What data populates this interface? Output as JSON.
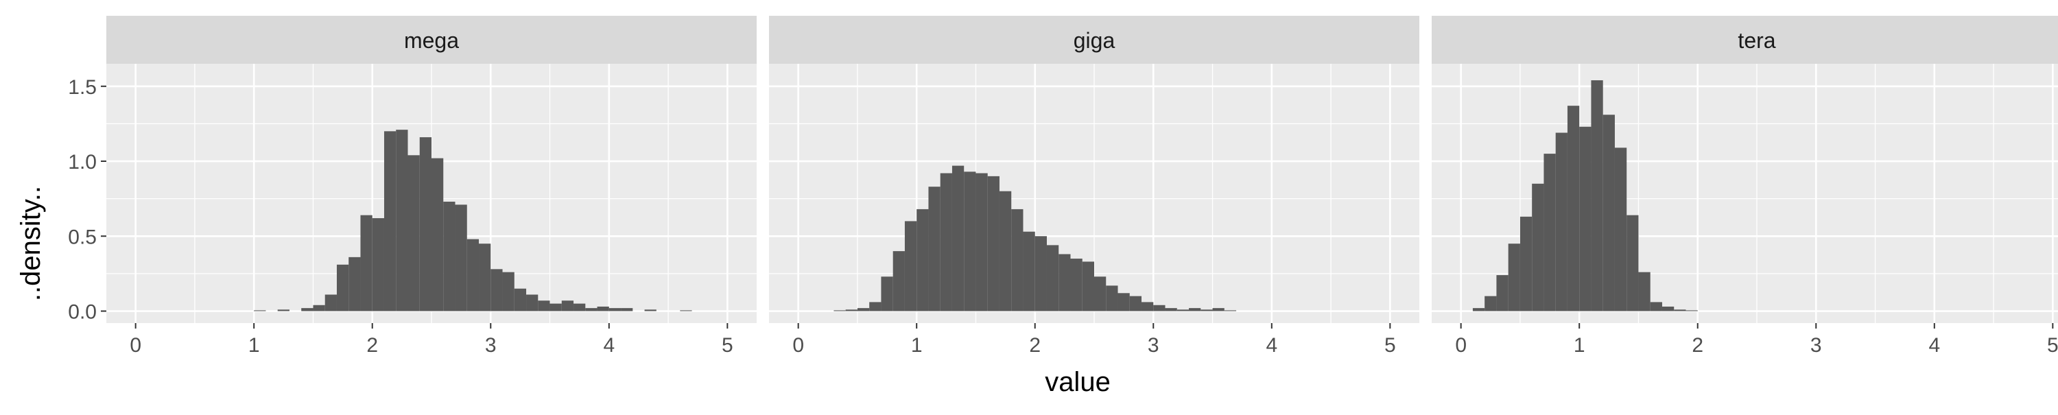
{
  "chart_data": {
    "type": "bar",
    "subtype": "faceted-histogram",
    "xlabel": "value",
    "ylabel": "..density..",
    "xlim": [
      0,
      5
    ],
    "ylim": [
      0,
      1.55
    ],
    "x_ticks": [
      "0",
      "1",
      "2",
      "3",
      "4",
      "5"
    ],
    "y_ticks": [
      "0.0",
      "0.5",
      "1.0",
      "1.5"
    ],
    "bin_width": 0.1,
    "grid": true,
    "colors": {
      "bar": "#595959",
      "panel": "#ebebeb",
      "strip": "#d9d9d9",
      "grid": "#ffffff"
    },
    "facets": [
      {
        "label": "mega",
        "bin_centers": [
          1.05,
          1.15,
          1.25,
          1.35,
          1.45,
          1.55,
          1.65,
          1.75,
          1.85,
          1.95,
          2.05,
          2.15,
          2.25,
          2.35,
          2.45,
          2.55,
          2.65,
          2.75,
          2.85,
          2.95,
          3.05,
          3.15,
          3.25,
          3.35,
          3.45,
          3.55,
          3.65,
          3.75,
          3.85,
          3.95,
          4.05,
          4.15,
          4.25,
          4.35,
          4.45,
          4.55,
          4.65,
          4.75
        ],
        "values": [
          0.005,
          0.0,
          0.01,
          0.0,
          0.02,
          0.04,
          0.11,
          0.31,
          0.36,
          0.64,
          0.62,
          1.2,
          1.21,
          1.04,
          1.16,
          1.02,
          0.73,
          0.71,
          0.48,
          0.45,
          0.28,
          0.26,
          0.15,
          0.11,
          0.07,
          0.05,
          0.07,
          0.05,
          0.02,
          0.03,
          0.02,
          0.02,
          0.0,
          0.01,
          0.0,
          0.0,
          0.005,
          0.0
        ]
      },
      {
        "label": "giga",
        "bin_centers": [
          0.05,
          0.15,
          0.25,
          0.35,
          0.45,
          0.55,
          0.65,
          0.75,
          0.85,
          0.95,
          1.05,
          1.15,
          1.25,
          1.35,
          1.45,
          1.55,
          1.65,
          1.75,
          1.85,
          1.95,
          2.05,
          2.15,
          2.25,
          2.35,
          2.45,
          2.55,
          2.65,
          2.75,
          2.85,
          2.95,
          3.05,
          3.15,
          3.25,
          3.35,
          3.45,
          3.55,
          3.65
        ],
        "values": [
          0.0,
          0.0,
          0.0,
          0.005,
          0.01,
          0.02,
          0.06,
          0.23,
          0.4,
          0.6,
          0.68,
          0.83,
          0.92,
          0.97,
          0.93,
          0.92,
          0.9,
          0.8,
          0.68,
          0.53,
          0.5,
          0.44,
          0.38,
          0.35,
          0.33,
          0.23,
          0.17,
          0.12,
          0.1,
          0.06,
          0.04,
          0.02,
          0.01,
          0.02,
          0.01,
          0.02,
          0.005
        ]
      },
      {
        "label": "tera",
        "bin_centers": [
          0.05,
          0.15,
          0.25,
          0.35,
          0.45,
          0.55,
          0.65,
          0.75,
          0.85,
          0.95,
          1.05,
          1.15,
          1.25,
          1.35,
          1.45,
          1.55,
          1.65,
          1.75,
          1.85,
          1.95
        ],
        "values": [
          0.0,
          0.02,
          0.1,
          0.24,
          0.45,
          0.63,
          0.85,
          1.05,
          1.19,
          1.37,
          1.23,
          1.54,
          1.31,
          1.09,
          0.64,
          0.26,
          0.06,
          0.03,
          0.01,
          0.005
        ]
      }
    ]
  }
}
